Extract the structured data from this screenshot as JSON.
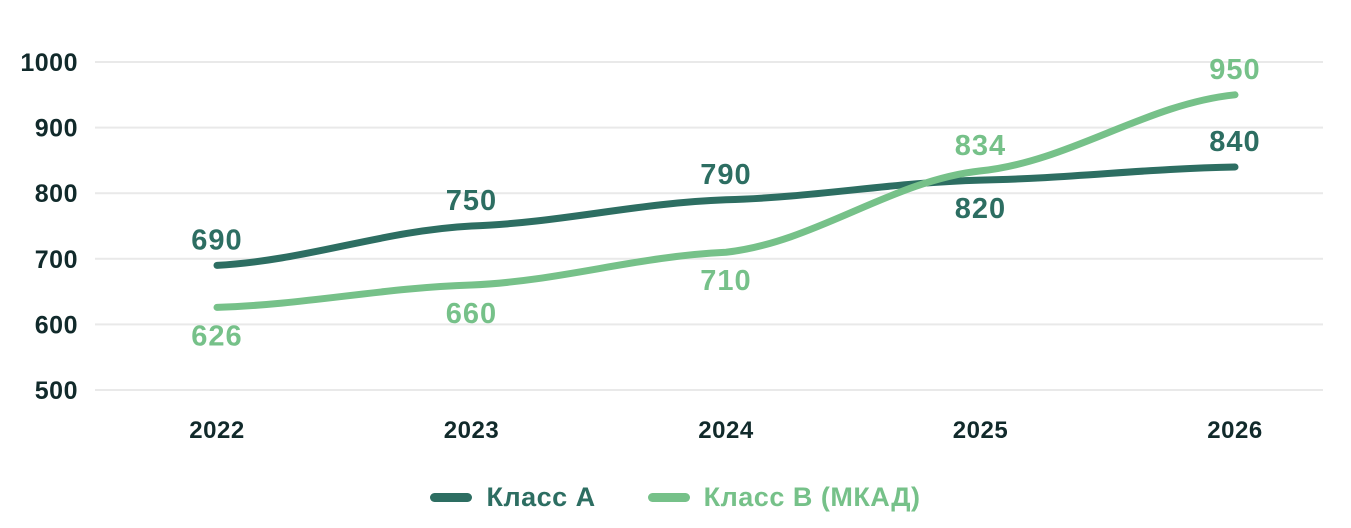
{
  "chart_data": {
    "type": "line",
    "title": "",
    "xlabel": "",
    "ylabel": "",
    "categories": [
      "2022",
      "2023",
      "2024",
      "2025",
      "2026"
    ],
    "series": [
      {
        "name": "Класс А",
        "values": [
          690,
          750,
          790,
          820,
          840
        ],
        "color": "#2d6e62",
        "label_placements": [
          "above",
          "above",
          "above",
          "below",
          "above"
        ]
      },
      {
        "name": "Класс В (МКАД)",
        "values": [
          626,
          660,
          710,
          834,
          950
        ],
        "color": "#76c189",
        "label_placements": [
          "below",
          "below",
          "below",
          "above",
          "above"
        ]
      }
    ],
    "yticks": [
      "1000",
      "900",
      "800",
      "700",
      "600",
      "500"
    ],
    "ytick_values": [
      1000,
      900,
      800,
      700,
      600,
      500
    ],
    "ylim": [
      500,
      1000
    ],
    "grid": "horizontal",
    "legend_position": "bottom",
    "colors": {
      "axis_text": "#112a2b",
      "gridline": "#e9e9e9",
      "background": "#ffffff"
    }
  }
}
